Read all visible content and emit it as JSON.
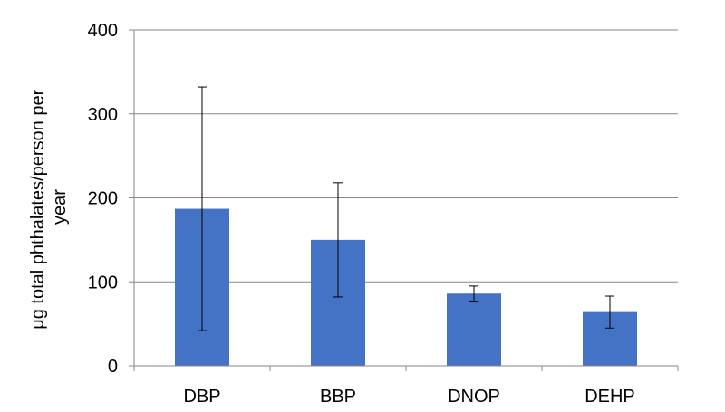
{
  "chart_data": {
    "type": "bar",
    "title": "",
    "xlabel": "",
    "ylabel_lines": [
      "μg total phthalates/person per",
      "year"
    ],
    "categories": [
      "DBP",
      "BBP",
      "DNOP",
      "DEHP"
    ],
    "values": [
      187,
      150,
      86,
      64
    ],
    "error_low": [
      42,
      82,
      77,
      45
    ],
    "error_high": [
      332,
      218,
      95,
      83
    ],
    "ylim": [
      0,
      400
    ],
    "yticks": [
      0,
      100,
      200,
      300,
      400
    ],
    "grid": true,
    "legend": "none",
    "colors": {
      "bar": "#4472C4",
      "grid": "#868686",
      "axis": "#868686",
      "error_bar": "#000000"
    }
  }
}
